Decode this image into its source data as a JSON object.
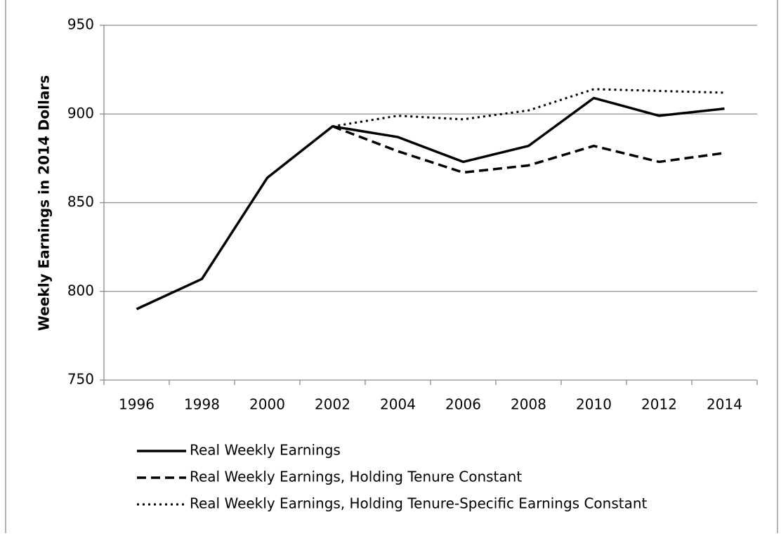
{
  "chart_data": {
    "type": "line",
    "y_label": "Weekly Earnings in 2014 Dollars",
    "categories": [
      "1996",
      "1998",
      "2000",
      "2002",
      "2004",
      "2006",
      "2008",
      "2010",
      "2012",
      "2014"
    ],
    "series": [
      {
        "name": "Real Weekly Earnings",
        "color": "#000000",
        "dash": "solid",
        "values": [
          790,
          807,
          864,
          893,
          887,
          873,
          882,
          909,
          899,
          903
        ]
      },
      {
        "name": "Real Weekly Earnings, Holding Tenure Constant",
        "color": "#000000",
        "dash": "dashed",
        "values": [
          null,
          null,
          null,
          893,
          879,
          867,
          871,
          882,
          873,
          878
        ]
      },
      {
        "name": "Real Weekly Earnings, Holding Tenure-Specific Earnings Constant",
        "color": "#000000",
        "dash": "dotted",
        "values": [
          null,
          null,
          null,
          893,
          899,
          897,
          902,
          914,
          913,
          912
        ]
      }
    ],
    "ylim": [
      750,
      950
    ],
    "yticks": [
      750,
      800,
      850,
      900,
      950
    ],
    "grid": true,
    "legend": "bottom"
  }
}
